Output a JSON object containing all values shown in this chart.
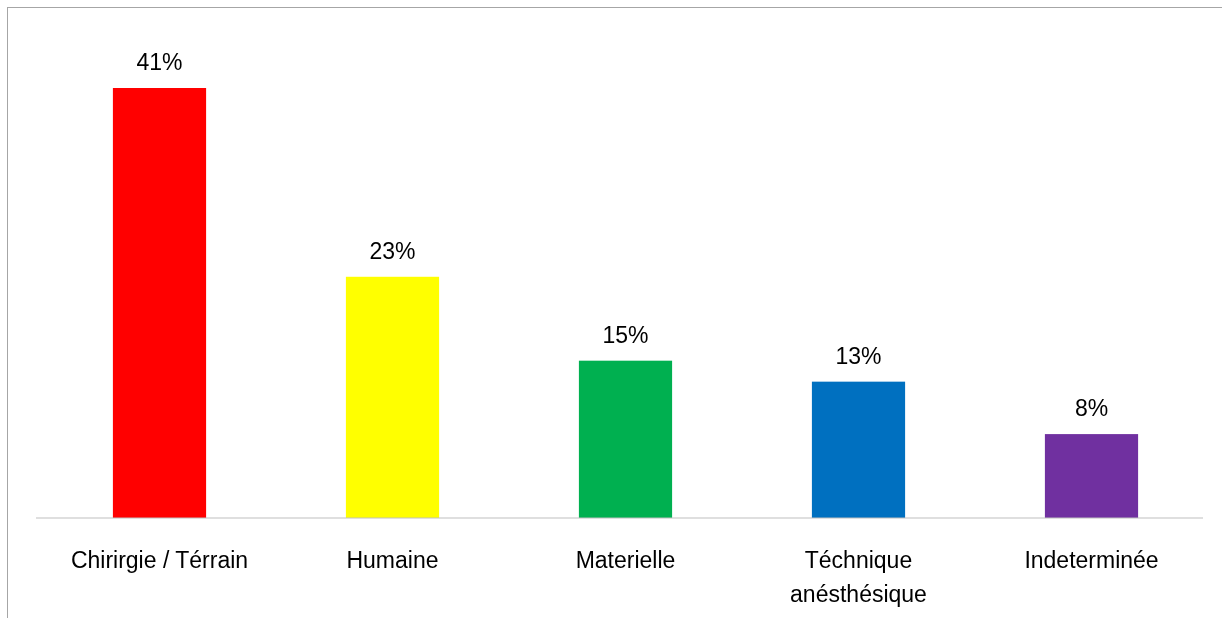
{
  "chart_data": {
    "type": "bar",
    "categories": [
      "Chirirgie / Térrain",
      "Humaine",
      "Materielle",
      "Téchnique anésthésique",
      "Indeterminée"
    ],
    "values": [
      41,
      23,
      15,
      13,
      8
    ],
    "colors": [
      "#ff0000",
      "#ffff00",
      "#00b050",
      "#0070c0",
      "#7030a0"
    ],
    "value_labels": [
      "41%",
      "23%",
      "15%",
      "13%",
      "8%"
    ]
  }
}
